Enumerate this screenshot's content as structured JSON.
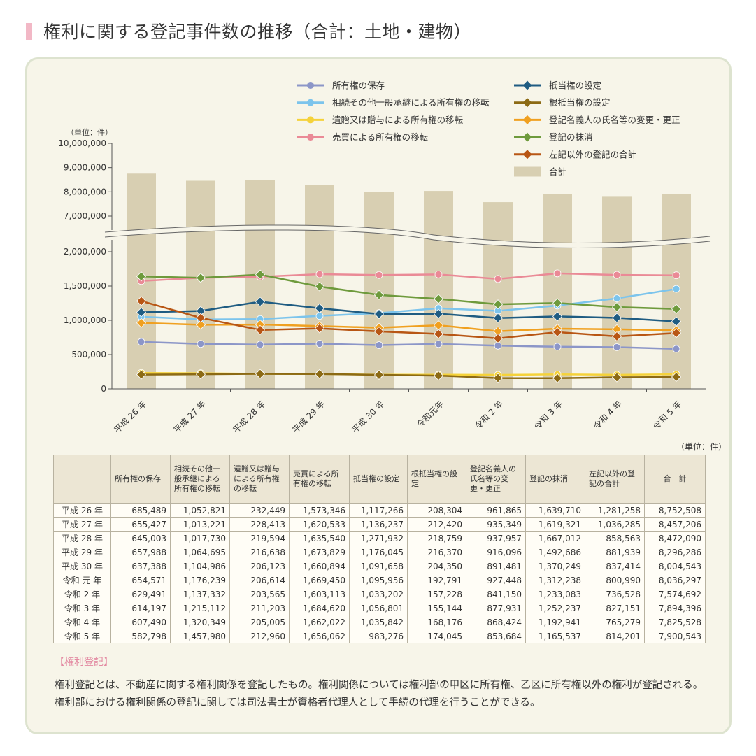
{
  "page_title": "権利に関する登記事件数の推移（合計：土地・建物）",
  "chart_data": {
    "type": "line",
    "unit_label": "（単位：件）",
    "y_ticks": [
      "10,000,000",
      "9,000,000",
      "8,000,000",
      "7,000,000",
      "2,000,000",
      "1,500,000",
      "1,000,000",
      "500,000",
      "0"
    ],
    "categories": [
      "平成 26 年",
      "平成 27 年",
      "平成 28 年",
      "平成 29 年",
      "平成 30 年",
      "令和元年",
      "令和 2 年",
      "令和 3 年",
      "令和 4 年",
      "令和 5 年"
    ],
    "bar_series": {
      "name": "合計",
      "color": "#d8cfb2",
      "values": [
        8752508,
        8457206,
        8472090,
        8296286,
        8004543,
        8036297,
        7574692,
        7894396,
        7825528,
        7900543
      ]
    },
    "series": [
      {
        "name": "所有権の保存",
        "color": "#8c96c8",
        "marker": "circle",
        "values": [
          685489,
          655427,
          645003,
          657988,
          637388,
          654571,
          629491,
          614197,
          607490,
          582798
        ]
      },
      {
        "name": "相続その他一般承継による所有権の移転",
        "color": "#7cc4ec",
        "marker": "circle",
        "values": [
          1052821,
          1013221,
          1017730,
          1064695,
          1104986,
          1176239,
          1137332,
          1215112,
          1320349,
          1457980
        ]
      },
      {
        "name": "遺贈又は贈与による所有権の移転",
        "color": "#f5d23a",
        "marker": "circle",
        "values": [
          232449,
          228413,
          219594,
          216638,
          206123,
          206614,
          203565,
          211203,
          205005,
          212960
        ]
      },
      {
        "name": "売買による所有権の移転",
        "color": "#ea8a96",
        "marker": "circle",
        "values": [
          1573346,
          1620533,
          1635540,
          1673829,
          1660894,
          1669450,
          1603113,
          1684620,
          1662022,
          1656062
        ]
      },
      {
        "name": "抵当権の設定",
        "color": "#1f5c82",
        "marker": "diamond",
        "values": [
          1117266,
          1136237,
          1271932,
          1176045,
          1091658,
          1095956,
          1033202,
          1056801,
          1035842,
          983276
        ]
      },
      {
        "name": "根抵当権の設定",
        "color": "#8c6a14",
        "marker": "diamond",
        "values": [
          208304,
          212420,
          218759,
          216370,
          204350,
          192791,
          157228,
          155144,
          168176,
          174045
        ]
      },
      {
        "name": "登記名義人の氏名等の変更・更正",
        "color": "#f0a020",
        "marker": "diamond",
        "values": [
          961865,
          935349,
          937957,
          916096,
          891481,
          927448,
          841150,
          877931,
          868424,
          853684
        ]
      },
      {
        "name": "登記の抹消",
        "color": "#6e9a3c",
        "marker": "diamond",
        "values": [
          1639710,
          1619321,
          1667012,
          1492686,
          1370249,
          1312238,
          1233083,
          1252237,
          1192941,
          1165537
        ]
      },
      {
        "name": "左記以外の登記の合計",
        "color": "#b85614",
        "marker": "diamond",
        "values": [
          1281258,
          1036285,
          858563,
          881939,
          837414,
          800990,
          736528,
          827151,
          765279,
          814201
        ]
      }
    ]
  },
  "table": {
    "unit": "（単位：件）",
    "headers": [
      "",
      "所有権の保存",
      "相続その他一般承継による所有権の移転",
      "遺贈又は贈与による所有権の移転",
      "売買による所有権の移転",
      "抵当権の設定",
      "根抵当権の設定",
      "登記名義人の氏名等の変更・更正",
      "登記の抹消",
      "左記以外の登記の合計",
      "合　計"
    ],
    "rows": [
      [
        "平成 26 年",
        "685,489",
        "1,052,821",
        "232,449",
        "1,573,346",
        "1,117,266",
        "208,304",
        "961,865",
        "1,639,710",
        "1,281,258",
        "8,752,508"
      ],
      [
        "平成 27 年",
        "655,427",
        "1,013,221",
        "228,413",
        "1,620,533",
        "1,136,237",
        "212,420",
        "935,349",
        "1,619,321",
        "1,036,285",
        "8,457,206"
      ],
      [
        "平成 28 年",
        "645,003",
        "1,017,730",
        "219,594",
        "1,635,540",
        "1,271,932",
        "218,759",
        "937,957",
        "1,667,012",
        "858,563",
        "8,472,090"
      ],
      [
        "平成 29 年",
        "657,988",
        "1,064,695",
        "216,638",
        "1,673,829",
        "1,176,045",
        "216,370",
        "916,096",
        "1,492,686",
        "881,939",
        "8,296,286"
      ],
      [
        "平成 30 年",
        "637,388",
        "1,104,986",
        "206,123",
        "1,660,894",
        "1,091,658",
        "204,350",
        "891,481",
        "1,370,249",
        "837,414",
        "8,004,543"
      ],
      [
        "令和 元 年",
        "654,571",
        "1,176,239",
        "206,614",
        "1,669,450",
        "1,095,956",
        "192,791",
        "927,448",
        "1,312,238",
        "800,990",
        "8,036,297"
      ],
      [
        "令和 2 年",
        "629,491",
        "1,137,332",
        "203,565",
        "1,603,113",
        "1,033,202",
        "157,228",
        "841,150",
        "1,233,083",
        "736,528",
        "7,574,692"
      ],
      [
        "令和 3 年",
        "614,197",
        "1,215,112",
        "211,203",
        "1,684,620",
        "1,056,801",
        "155,144",
        "877,931",
        "1,252,237",
        "827,151",
        "7,894,396"
      ],
      [
        "令和 4 年",
        "607,490",
        "1,320,349",
        "205,005",
        "1,662,022",
        "1,035,842",
        "168,176",
        "868,424",
        "1,192,941",
        "765,279",
        "7,825,528"
      ],
      [
        "令和 5 年",
        "582,798",
        "1,457,980",
        "212,960",
        "1,656,062",
        "983,276",
        "174,045",
        "853,684",
        "1,165,537",
        "814,201",
        "7,900,543"
      ]
    ]
  },
  "note": {
    "heading": "【権利登記】",
    "text": "権利登記とは、不動産に関する権利関係を登記したもの。権利関係については権利部の甲区に所有権、乙区に所有権以外の権利が登記される。権利部における権利関係の登記に関しては司法書士が資格者代理人として手続の代理を行うことができる。"
  },
  "colors": {
    "accent_pink": "#f2b8c6",
    "panel_bg": "#f7f5e9",
    "panel_border": "#dde3cf",
    "bar": "#d8cfb2"
  }
}
